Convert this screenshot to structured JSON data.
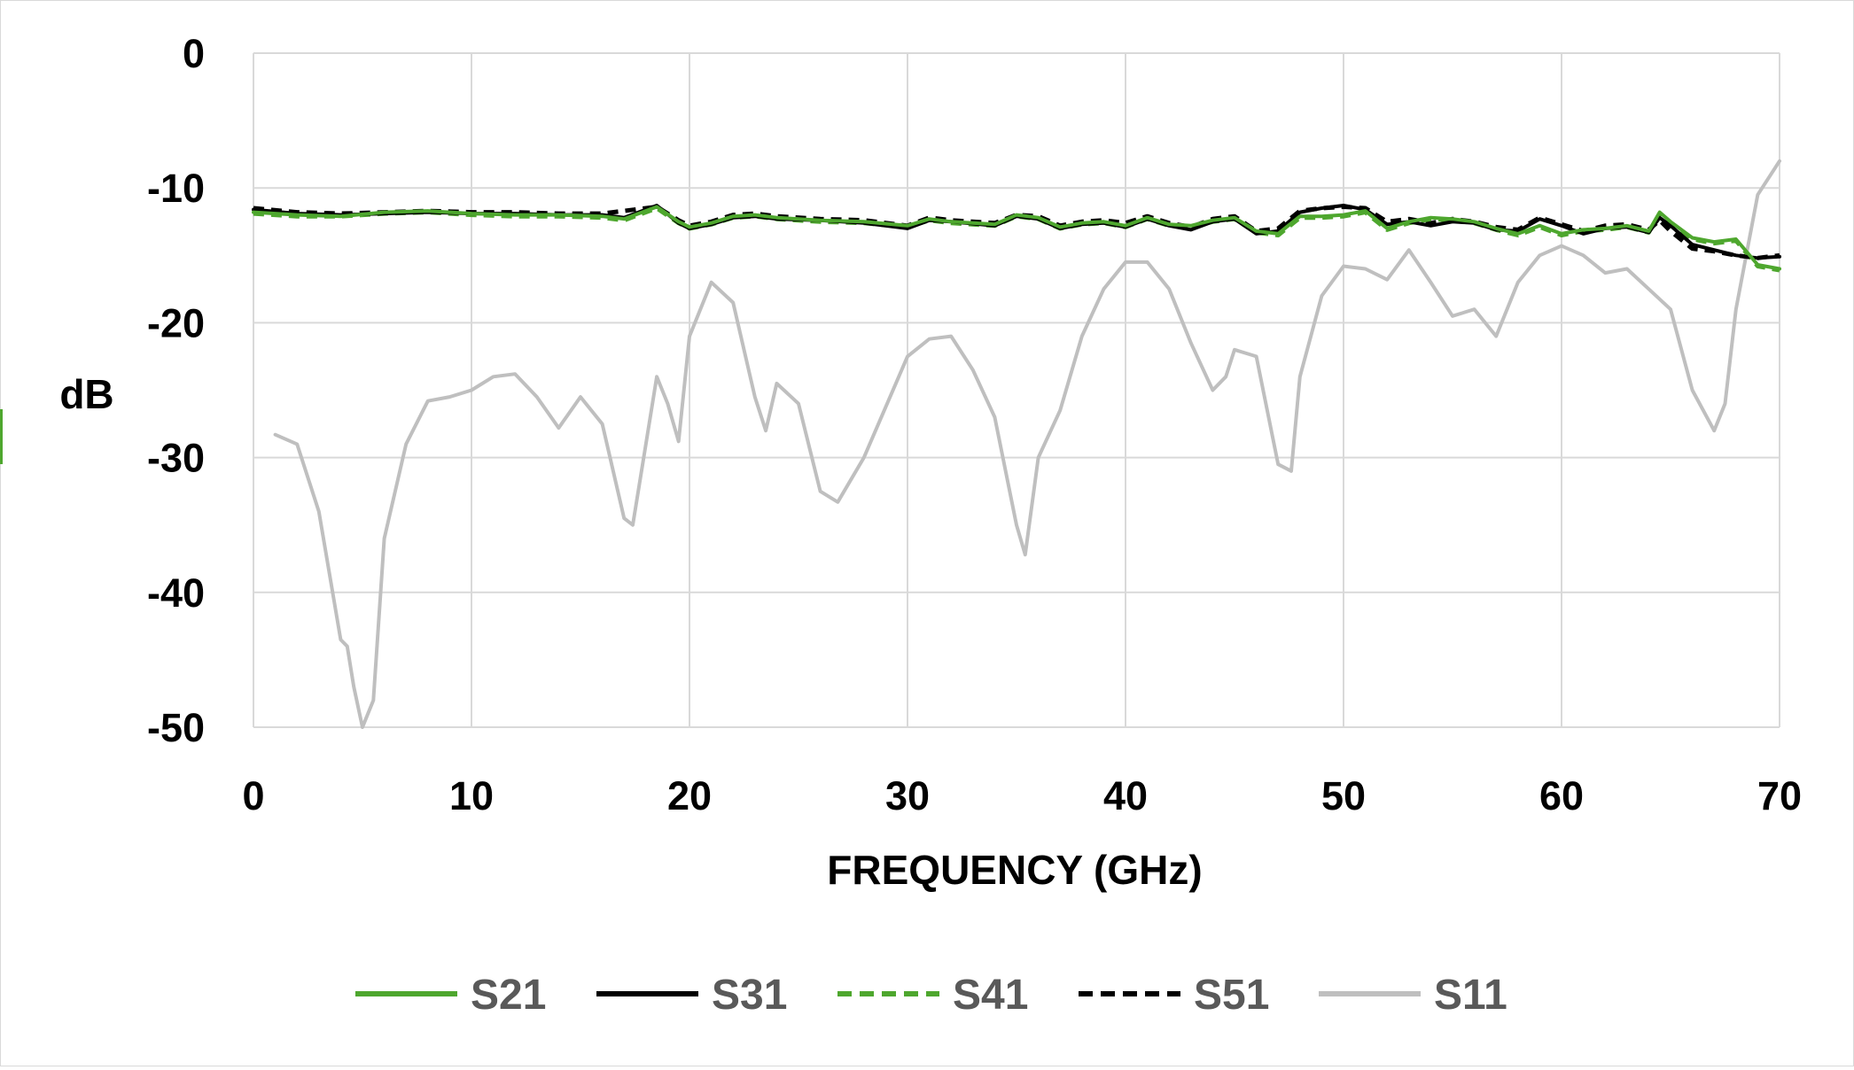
{
  "chart_data": {
    "type": "line",
    "title": "",
    "xlabel": "FREQUENCY (GHz)",
    "ylabel": "dB",
    "xlim": [
      0,
      70
    ],
    "ylim": [
      -50,
      0
    ],
    "xticks": [
      0,
      10,
      20,
      30,
      40,
      50,
      60,
      70
    ],
    "yticks": [
      0,
      -10,
      -20,
      -30,
      -40,
      -50
    ],
    "grid": true,
    "legend_position": "bottom",
    "series": [
      {
        "name": "S21",
        "color": "#4ea72e",
        "dash": "solid",
        "x": [
          0,
          2,
          4,
          6,
          8,
          10,
          12,
          14,
          16,
          17,
          18.5,
          19.5,
          20,
          21,
          22,
          23,
          24,
          26,
          28,
          30,
          31,
          32,
          34,
          35,
          36,
          37,
          38,
          39,
          40,
          41,
          42,
          43,
          44,
          45,
          46,
          47,
          48,
          49,
          50,
          51,
          52,
          53,
          54,
          55,
          56,
          57,
          58,
          59,
          60,
          61,
          62,
          63,
          64,
          64.5,
          65,
          66,
          67,
          68,
          69,
          70
        ],
        "y": [
          -11.8,
          -12.0,
          -12.1,
          -11.8,
          -11.7,
          -11.9,
          -12.0,
          -12.0,
          -12.1,
          -12.3,
          -11.4,
          -12.5,
          -12.9,
          -12.6,
          -12.1,
          -12.0,
          -12.2,
          -12.4,
          -12.5,
          -12.8,
          -12.3,
          -12.5,
          -12.7,
          -12.0,
          -12.2,
          -12.9,
          -12.6,
          -12.5,
          -12.8,
          -12.2,
          -12.7,
          -12.8,
          -12.4,
          -12.2,
          -13.2,
          -13.4,
          -12.1,
          -12.1,
          -12.0,
          -11.7,
          -13.0,
          -12.5,
          -12.2,
          -12.3,
          -12.5,
          -13.0,
          -13.4,
          -12.8,
          -13.4,
          -13.1,
          -13.0,
          -12.8,
          -13.2,
          -11.8,
          -12.5,
          -13.7,
          -14.0,
          -13.8,
          -15.7,
          -16.0
        ]
      },
      {
        "name": "S31",
        "color": "#000000",
        "dash": "solid",
        "x": [
          0,
          2,
          4,
          6,
          8,
          10,
          12,
          14,
          16,
          17,
          18.5,
          19.5,
          20,
          21,
          22,
          23,
          24,
          26,
          28,
          30,
          31,
          32,
          34,
          35,
          36,
          37,
          38,
          39,
          40,
          41,
          42,
          43,
          44,
          45,
          46,
          47,
          48,
          49,
          50,
          51,
          52,
          53,
          54,
          55,
          56,
          57,
          58,
          59,
          60,
          61,
          62,
          63,
          64,
          64.5,
          65,
          66,
          67,
          68,
          69,
          70
        ],
        "y": [
          -11.6,
          -11.9,
          -12.0,
          -11.9,
          -11.8,
          -11.9,
          -11.9,
          -12.0,
          -12.0,
          -12.2,
          -11.3,
          -12.6,
          -13.0,
          -12.7,
          -12.2,
          -12.1,
          -12.3,
          -12.4,
          -12.6,
          -13.0,
          -12.4,
          -12.5,
          -12.8,
          -12.1,
          -12.3,
          -13.0,
          -12.7,
          -12.6,
          -12.9,
          -12.3,
          -12.8,
          -13.1,
          -12.5,
          -12.3,
          -13.4,
          -13.2,
          -11.8,
          -11.5,
          -11.3,
          -11.6,
          -12.7,
          -12.5,
          -12.8,
          -12.5,
          -12.6,
          -13.1,
          -13.2,
          -12.3,
          -12.8,
          -13.4,
          -13.0,
          -12.9,
          -13.3,
          -12.2,
          -12.8,
          -14.2,
          -14.6,
          -15.0,
          -15.2,
          -15.1
        ]
      },
      {
        "name": "S41",
        "color": "#4ea72e",
        "dash": "dashed",
        "x": [
          0,
          2,
          4,
          6,
          8,
          10,
          12,
          14,
          16,
          17,
          18.5,
          19.5,
          20,
          21,
          22,
          23,
          24,
          26,
          28,
          30,
          31,
          32,
          34,
          35,
          36,
          37,
          38,
          39,
          40,
          41,
          42,
          43,
          44,
          45,
          46,
          47,
          48,
          49,
          50,
          51,
          52,
          53,
          54,
          55,
          56,
          57,
          58,
          59,
          60,
          61,
          62,
          63,
          64,
          64.5,
          65,
          66,
          67,
          68,
          69,
          70
        ],
        "y": [
          -11.9,
          -12.1,
          -12.1,
          -11.9,
          -11.8,
          -12.0,
          -12.1,
          -12.1,
          -12.2,
          -12.4,
          -11.5,
          -12.6,
          -13.0,
          -12.7,
          -12.2,
          -12.1,
          -12.3,
          -12.5,
          -12.6,
          -12.9,
          -12.4,
          -12.6,
          -12.8,
          -12.1,
          -12.3,
          -13.0,
          -12.7,
          -12.6,
          -12.9,
          -12.3,
          -12.8,
          -12.9,
          -12.5,
          -12.3,
          -13.3,
          -13.5,
          -12.2,
          -12.2,
          -12.1,
          -11.8,
          -13.1,
          -12.6,
          -12.3,
          -12.4,
          -12.6,
          -13.1,
          -13.5,
          -12.9,
          -13.5,
          -13.2,
          -13.1,
          -12.9,
          -13.3,
          -11.9,
          -12.6,
          -13.8,
          -14.1,
          -13.9,
          -15.8,
          -16.1
        ]
      },
      {
        "name": "S51",
        "color": "#000000",
        "dash": "dashed",
        "x": [
          0,
          2,
          4,
          6,
          8,
          10,
          12,
          14,
          16,
          17,
          18.5,
          19.5,
          20,
          21,
          22,
          23,
          24,
          26,
          28,
          30,
          31,
          32,
          34,
          35,
          36,
          37,
          38,
          39,
          40,
          41,
          42,
          43,
          44,
          45,
          46,
          47,
          48,
          49,
          50,
          51,
          52,
          53,
          54,
          55,
          56,
          57,
          58,
          59,
          60,
          61,
          62,
          63,
          64,
          64.5,
          65,
          66,
          67,
          68,
          69,
          70
        ],
        "y": [
          -11.5,
          -11.8,
          -11.9,
          -11.8,
          -11.7,
          -11.8,
          -11.8,
          -11.9,
          -11.9,
          -11.7,
          -11.4,
          -12.4,
          -12.8,
          -12.5,
          -12.0,
          -11.9,
          -12.1,
          -12.3,
          -12.4,
          -12.8,
          -12.2,
          -12.4,
          -12.6,
          -12.0,
          -12.1,
          -12.8,
          -12.5,
          -12.4,
          -12.6,
          -12.1,
          -12.6,
          -12.9,
          -12.3,
          -12.1,
          -13.2,
          -13.0,
          -11.7,
          -11.5,
          -11.4,
          -11.5,
          -12.5,
          -12.3,
          -12.6,
          -12.3,
          -12.5,
          -12.9,
          -13.1,
          -12.2,
          -12.7,
          -13.2,
          -12.8,
          -12.7,
          -13.1,
          -12.4,
          -13.2,
          -14.5,
          -14.7,
          -15.0,
          -15.2,
          -15.0
        ]
      },
      {
        "name": "S11",
        "color": "#bfbfbf",
        "dash": "solid",
        "x": [
          1,
          2,
          3,
          4,
          4.3,
          4.6,
          5,
          5.5,
          6,
          7,
          8,
          9,
          10,
          11,
          12,
          13,
          14,
          15,
          16,
          17,
          17.4,
          18,
          18.5,
          19,
          19.5,
          20,
          21,
          22,
          23,
          23.5,
          24,
          25,
          26,
          26.8,
          28,
          30,
          31,
          32,
          33,
          34,
          35,
          35.4,
          36,
          37,
          38,
          39,
          40,
          41,
          42,
          43,
          44,
          44.6,
          45,
          46,
          47,
          47.6,
          48,
          49,
          50,
          51,
          52,
          53,
          54,
          55,
          56,
          57,
          58,
          59,
          60,
          61,
          62,
          63,
          64,
          65,
          66,
          67,
          67.5,
          68,
          69,
          70
        ],
        "y": [
          -28.3,
          -29.0,
          -34.0,
          -43.5,
          -44.0,
          -47.0,
          -50.0,
          -48.0,
          -36.0,
          -29.0,
          -25.8,
          -25.5,
          -25.0,
          -24.0,
          -23.8,
          -25.5,
          -27.8,
          -25.5,
          -27.5,
          -34.5,
          -35.0,
          -29.0,
          -24.0,
          -26.0,
          -28.8,
          -21.0,
          -17.0,
          -18.5,
          -25.5,
          -28.0,
          -24.5,
          -26.0,
          -32.5,
          -33.3,
          -30.0,
          -22.5,
          -21.2,
          -21.0,
          -23.5,
          -27.0,
          -35.0,
          -37.2,
          -30.0,
          -26.5,
          -21.0,
          -17.5,
          -15.5,
          -15.5,
          -17.5,
          -21.5,
          -25.0,
          -24.0,
          -22.0,
          -22.5,
          -30.5,
          -31.0,
          -24.0,
          -18.0,
          -15.8,
          -16.0,
          -16.8,
          -14.6,
          -17.0,
          -19.5,
          -19.0,
          -21.0,
          -17.0,
          -15.0,
          -14.3,
          -15.0,
          -16.3,
          -16.0,
          -17.5,
          -19.0,
          -25.0,
          -28.0,
          -26.0,
          -19.0,
          -10.5,
          -8.0
        ]
      }
    ]
  }
}
